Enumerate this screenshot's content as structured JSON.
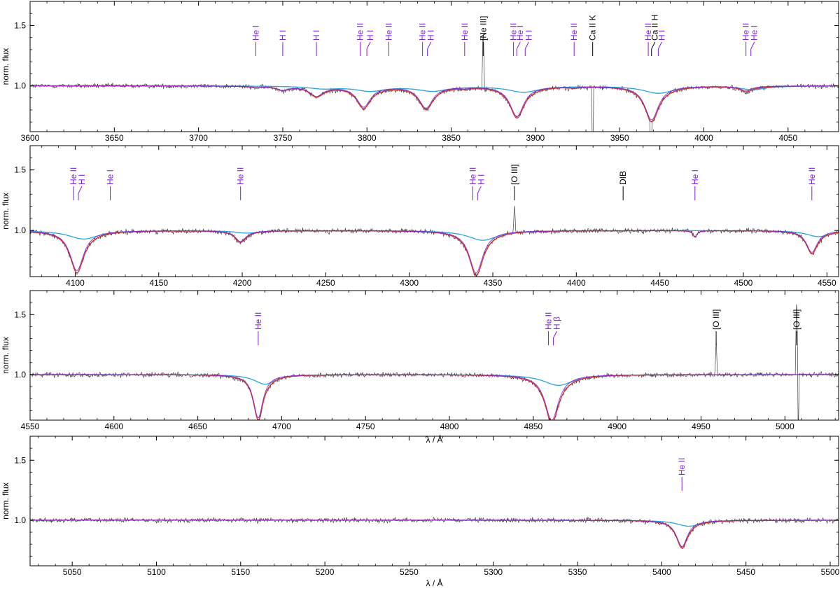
{
  "colors": {
    "observed": "#404040",
    "model_total": "#d8322b",
    "model_primary": "#7b1fe0",
    "model_secondary": "#2aa3e0",
    "annotation_element": "#7b1fe0",
    "annotation_other": "#000000"
  },
  "chart_data": [
    {
      "type": "line",
      "panel": 1,
      "xlim": [
        3600,
        4080
      ],
      "ylim": [
        0.62,
        1.7
      ],
      "xticks": [
        3600,
        3650,
        3700,
        3750,
        3800,
        3850,
        3900,
        3950,
        4000,
        4050
      ],
      "yticks": [
        1.0,
        1.5
      ],
      "ylabel": "norm. flux",
      "xlabel": "",
      "absorption_lines": [
        {
          "x": 3734,
          "d1": 0.01,
          "d2": 0.0,
          "w": 4
        },
        {
          "x": 3750,
          "d1": 0.03,
          "d2": 0.0,
          "w": 4
        },
        {
          "x": 3770,
          "d1": 0.08,
          "d2": 0.02,
          "w": 5
        },
        {
          "x": 3798,
          "d1": 0.17,
          "d2": 0.04,
          "w": 5
        },
        {
          "x": 3835,
          "d1": 0.18,
          "d2": 0.04,
          "w": 5
        },
        {
          "x": 3858,
          "d1": 0.01,
          "d2": 0.0,
          "w": 3
        },
        {
          "x": 3889,
          "d1": 0.25,
          "d2": 0.05,
          "w": 5
        },
        {
          "x": 3923,
          "d1": 0.01,
          "d2": 0.0,
          "w": 3
        },
        {
          "x": 3969,
          "d1": 0.28,
          "d2": 0.06,
          "w": 5
        },
        {
          "x": 4025,
          "d1": 0.04,
          "d2": 0.03,
          "w": 4
        }
      ],
      "features": [
        {
          "x": 3869,
          "dy": 0.55,
          "w": 0.8
        },
        {
          "x": 3934,
          "dy": -0.75,
          "w": 0.6
        },
        {
          "x": 3968.5,
          "dy": -0.55,
          "w": 0.6
        }
      ],
      "line_labels": [
        {
          "x": 3734,
          "text": "He I",
          "class": "element",
          "tick": "straight"
        },
        {
          "x": 3750,
          "text": "H I",
          "class": "element",
          "tick": "straight"
        },
        {
          "x": 3770,
          "text": "H I",
          "class": "element",
          "tick": "straight"
        },
        {
          "x": 3796,
          "text": "He II",
          "class": "element",
          "tick": "straight"
        },
        {
          "x": 3802,
          "text": "H I",
          "class": "element",
          "tick": "diagonal"
        },
        {
          "x": 3813,
          "text": "He II",
          "class": "element",
          "tick": "straight"
        },
        {
          "x": 3833,
          "text": "He II",
          "class": "element",
          "tick": "straight"
        },
        {
          "x": 3838,
          "text": "H I",
          "class": "element",
          "tick": "diagonal"
        },
        {
          "x": 3858,
          "text": "He II",
          "class": "element",
          "tick": "straight"
        },
        {
          "x": 3869,
          "text": "[Ne III]",
          "class": "other",
          "tick": "straight"
        },
        {
          "x": 3887,
          "text": "He II",
          "class": "element",
          "tick": "straight"
        },
        {
          "x": 3891,
          "text": "He I",
          "class": "element",
          "tick": "diagonal"
        },
        {
          "x": 3896,
          "text": "H I",
          "class": "element",
          "tick": "diagonal"
        },
        {
          "x": 3923,
          "text": "He II",
          "class": "element",
          "tick": "straight"
        },
        {
          "x": 3934,
          "text": "Ca II K",
          "class": "other",
          "tick": "straight"
        },
        {
          "x": 3967,
          "text": "He II",
          "class": "element",
          "tick": "straight"
        },
        {
          "x": 3971,
          "text": "Ca II H",
          "class": "other",
          "tick": "diagonal"
        },
        {
          "x": 3975,
          "text": "H I",
          "class": "element",
          "tick": "diagonal"
        },
        {
          "x": 4025,
          "text": "He II",
          "class": "element",
          "tick": "straight"
        },
        {
          "x": 4030,
          "text": "He I",
          "class": "element",
          "tick": "diagonal"
        }
      ]
    },
    {
      "type": "line",
      "panel": 2,
      "xlim": [
        4073,
        4557
      ],
      "ylim": [
        0.62,
        1.7
      ],
      "xticks": [
        4100,
        4150,
        4200,
        4250,
        4300,
        4350,
        4400,
        4450,
        4500,
        4550
      ],
      "yticks": [
        1.0,
        1.5
      ],
      "ylabel": "norm. flux",
      "xlabel": "",
      "absorption_lines": [
        {
          "x": 4101,
          "d1": 0.33,
          "d2": 0.07,
          "w": 5
        },
        {
          "x": 4121,
          "d1": 0.0,
          "d2": 0.0,
          "w": 3
        },
        {
          "x": 4199,
          "d1": 0.09,
          "d2": 0.02,
          "w": 4
        },
        {
          "x": 4340,
          "d1": 0.35,
          "d2": 0.08,
          "w": 5
        },
        {
          "x": 4471,
          "d1": 0.05,
          "d2": 0.0,
          "w": 1.5
        },
        {
          "x": 4541,
          "d1": 0.18,
          "d2": 0.05,
          "w": 4
        }
      ],
      "features": [
        {
          "x": 4363,
          "dy": 0.25,
          "w": 0.8
        }
      ],
      "line_labels": [
        {
          "x": 4099,
          "text": "He II",
          "class": "element",
          "tick": "straight"
        },
        {
          "x": 4104,
          "text": "H I",
          "class": "element",
          "tick": "diagonal"
        },
        {
          "x": 4121,
          "text": "He I",
          "class": "element",
          "tick": "straight"
        },
        {
          "x": 4199,
          "text": "He II",
          "class": "element",
          "tick": "straight"
        },
        {
          "x": 4338,
          "text": "He II",
          "class": "element",
          "tick": "straight"
        },
        {
          "x": 4343,
          "text": "H I",
          "class": "element",
          "tick": "diagonal"
        },
        {
          "x": 4363,
          "text": "[O III]",
          "class": "other",
          "tick": "straight"
        },
        {
          "x": 4428,
          "text": "DIB",
          "class": "other",
          "tick": "straight"
        },
        {
          "x": 4471,
          "text": "He I",
          "class": "element",
          "tick": "straight"
        },
        {
          "x": 4541,
          "text": "He II",
          "class": "element",
          "tick": "straight"
        }
      ]
    },
    {
      "type": "line",
      "panel": 3,
      "xlim": [
        4550,
        5032
      ],
      "ylim": [
        0.62,
        1.7
      ],
      "xticks": [
        4550,
        4600,
        4650,
        4700,
        4750,
        4800,
        4850,
        4900,
        4950,
        5000
      ],
      "yticks": [
        1.0,
        1.5
      ],
      "ylabel": "norm. flux",
      "xlabel": "λ / Å",
      "absorption_lines": [
        {
          "x": 4686,
          "d1": 0.36,
          "d2": 0.08,
          "w": 3.5
        },
        {
          "x": 4861,
          "d1": 0.38,
          "d2": 0.09,
          "w": 5
        }
      ],
      "features": [
        {
          "x": 4959,
          "dy": 0.3,
          "w": 0.8
        },
        {
          "x": 5007,
          "dy": 0.7,
          "w": 0.8
        },
        {
          "x": 5008,
          "dy": -0.6,
          "w": 0.5
        }
      ],
      "line_labels": [
        {
          "x": 4686,
          "text": "He II",
          "class": "element",
          "tick": "straight"
        },
        {
          "x": 4859,
          "text": "He II",
          "class": "element",
          "tick": "straight"
        },
        {
          "x": 4864,
          "text": "H β",
          "class": "element",
          "tick": "diagonal"
        },
        {
          "x": 4959,
          "text": "[O III]",
          "class": "other",
          "tick": "straight"
        },
        {
          "x": 5007,
          "text": "[O III]",
          "class": "other",
          "tick": "straight"
        }
      ]
    },
    {
      "type": "line",
      "panel": 4,
      "xlim": [
        5025,
        5505
      ],
      "ylim": [
        0.62,
        1.7
      ],
      "xticks": [
        5050,
        5100,
        5150,
        5200,
        5250,
        5300,
        5350,
        5400,
        5450,
        5500
      ],
      "yticks": [
        1.0,
        1.5
      ],
      "ylabel": "norm. flux",
      "xlabel": "λ / Å",
      "absorption_lines": [
        {
          "x": 5412,
          "d1": 0.22,
          "d2": 0.05,
          "w": 4
        }
      ],
      "features": [],
      "line_labels": [
        {
          "x": 5412,
          "text": "He II",
          "class": "element",
          "tick": "straight"
        }
      ]
    }
  ]
}
